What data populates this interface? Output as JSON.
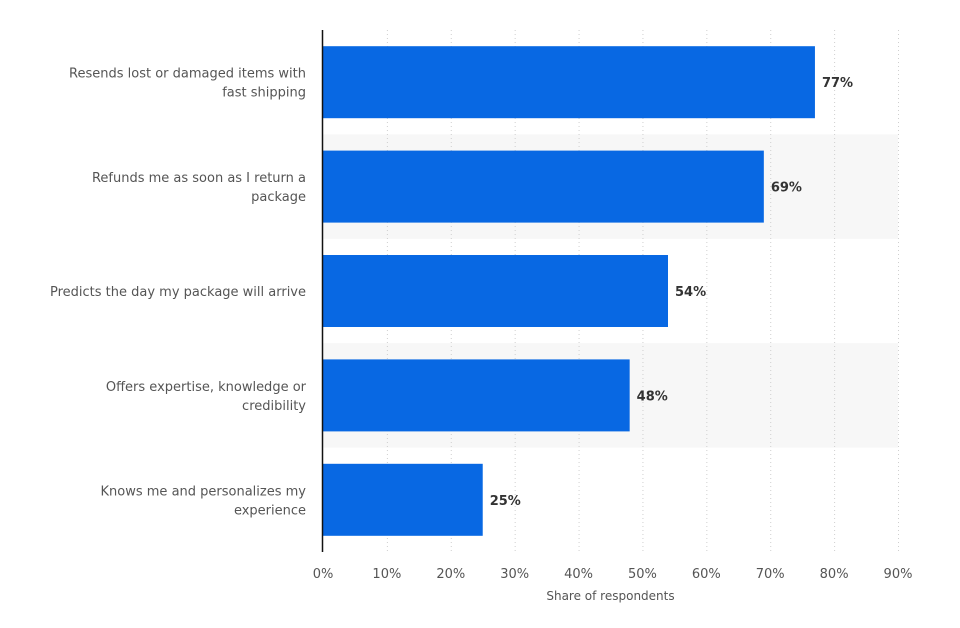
{
  "chart_data": {
    "type": "bar",
    "orientation": "horizontal",
    "categories": [
      [
        "Resends lost or damaged items with",
        "fast shipping"
      ],
      [
        "Refunds me as soon as I return a",
        "package"
      ],
      [
        "Predicts the day my package will arrive"
      ],
      [
        "Offers expertise, knowledge or",
        "credibility"
      ],
      [
        "Knows me and personalizes my",
        "experience"
      ]
    ],
    "values": [
      77,
      69,
      54,
      48,
      25
    ],
    "value_labels": [
      "77%",
      "69%",
      "54%",
      "48%",
      "25%"
    ],
    "xlim": [
      0,
      90
    ],
    "xticks": [
      0,
      10,
      20,
      30,
      40,
      50,
      60,
      70,
      80,
      90
    ],
    "xtick_labels": [
      "0%",
      "10%",
      "20%",
      "30%",
      "40%",
      "50%",
      "60%",
      "70%",
      "80%",
      "90%"
    ],
    "xlabel": "Share of respondents",
    "ylabel": "",
    "title": "",
    "grid": true,
    "grid_style": "dotted",
    "legend": "none",
    "colors": {
      "bar": "#0868e3",
      "band": "#f7f7f7",
      "axis": "#111111",
      "grid": "#cfcfcf",
      "text": "#555555",
      "value_text": "#333333"
    }
  }
}
